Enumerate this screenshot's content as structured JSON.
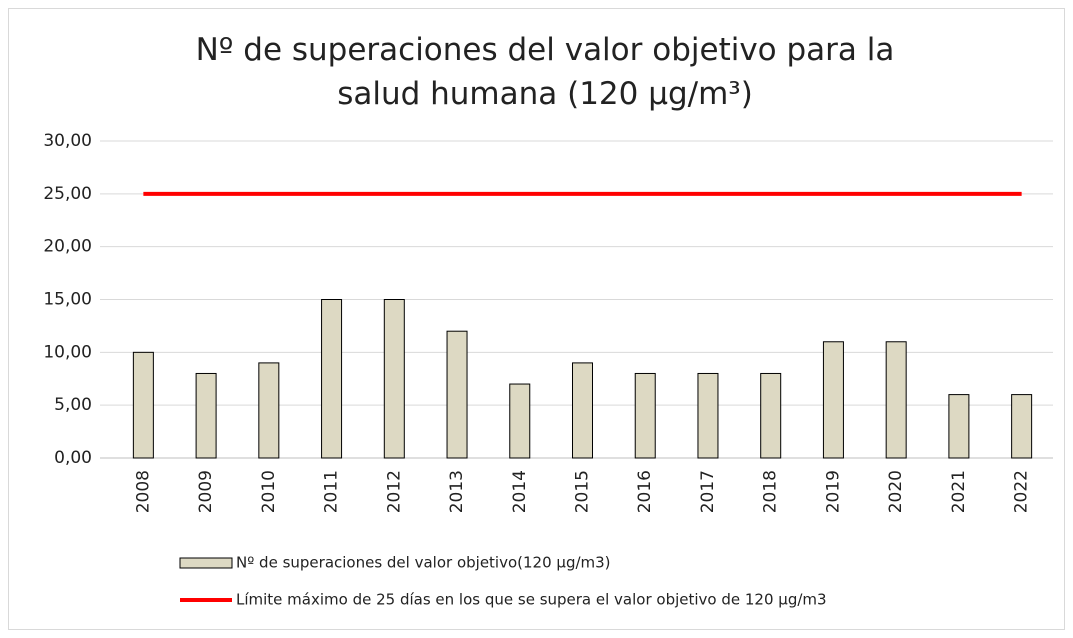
{
  "chart_data": {
    "type": "bar",
    "title": "Nº de superaciones del valor objetivo para la salud humana (120 µg/m³)",
    "categories": [
      "2008",
      "2009",
      "2010",
      "2011",
      "2012",
      "2013",
      "2014",
      "2015",
      "2016",
      "2017",
      "2018",
      "2019",
      "2020",
      "2021",
      "2022"
    ],
    "series": [
      {
        "name": "Nº de superaciones del valor objetivo(120 µg/m3)",
        "type": "bar",
        "color": "#ddd9c3",
        "values": [
          10,
          8,
          9,
          15,
          15,
          12,
          7,
          9,
          8,
          8,
          8,
          11,
          11,
          6,
          6
        ]
      },
      {
        "name": "Límite máximo de 25 días en los que se supera el valor objetivo de 120 µg/m3",
        "type": "line",
        "color": "#ff0000",
        "values": [
          25,
          25,
          25,
          25,
          25,
          25,
          25,
          25,
          25,
          25,
          25,
          25,
          25,
          25,
          25
        ]
      }
    ],
    "ylim": [
      0,
      30
    ],
    "yticks": [
      {
        "value": 0,
        "label": "0,00"
      },
      {
        "value": 5,
        "label": "5,00"
      },
      {
        "value": 10,
        "label": "10,00"
      },
      {
        "value": 15,
        "label": "15,00"
      },
      {
        "value": 20,
        "label": "20,00"
      },
      {
        "value": 25,
        "label": "25,00"
      },
      {
        "value": 30,
        "label": "30,00"
      }
    ],
    "grid": true,
    "legend": "bottom"
  }
}
